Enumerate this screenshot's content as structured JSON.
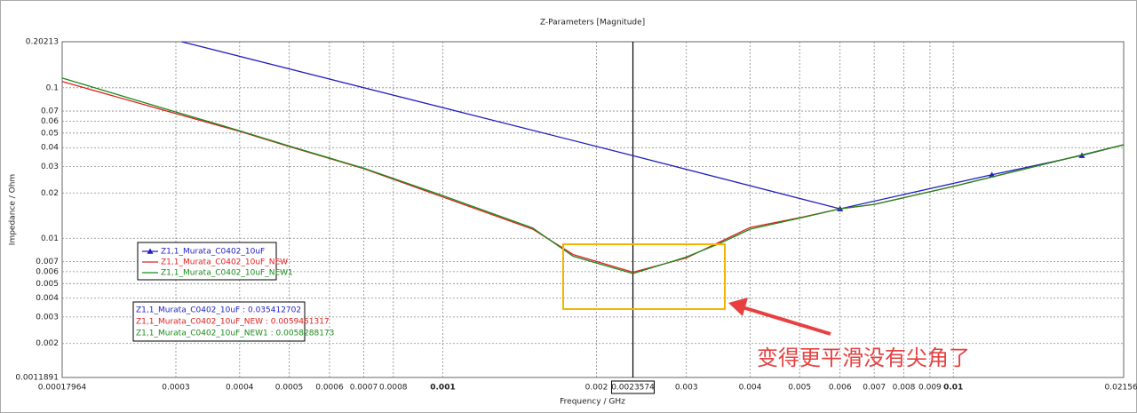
{
  "chart_data": {
    "type": "line",
    "title": "Z-Parameters [Magnitude]",
    "x_label": "Frequency / GHz",
    "y_label": "Impedance / Ohm",
    "log_x": true,
    "log_y": true,
    "grid": true,
    "xlim": [
      0.00017964,
      0.021565
    ],
    "ylim": [
      0.0011891,
      0.20213
    ],
    "xticks": [
      0.00017964,
      0.0003,
      0.0004,
      0.0005,
      0.0006,
      0.0007,
      0.0008,
      0.001,
      0.002,
      0.003,
      0.004,
      0.005,
      0.006,
      0.007,
      0.008,
      0.009,
      0.01,
      0.021565
    ],
    "yticks": [
      0.0011891,
      0.002,
      0.003,
      0.004,
      0.005,
      0.006,
      0.007,
      0.01,
      0.02,
      0.03,
      0.04,
      0.05,
      0.06,
      0.07,
      0.1,
      0.20213
    ],
    "cursor": 0.0023574,
    "series": [
      {
        "name": "Z1,1_Murata_C0402_10uF",
        "color": "#1f1fbf",
        "marker": "triangle",
        "x": [
          0.000308,
          0.0023574,
          0.006,
          0.0119,
          0.01786,
          0.021565
        ],
        "values": [
          0.20213,
          0.035412702,
          0.0157,
          0.0264,
          0.0355,
          0.0418
        ]
      },
      {
        "name": "Z1,1_Murata_C0402_10uF_NEW",
        "color": "#e02020",
        "x": [
          0.00017964,
          0.0003,
          0.0004,
          0.0005,
          0.0007,
          0.001,
          0.0015,
          0.0018,
          0.0023574,
          0.003,
          0.0035,
          0.004,
          0.005,
          0.006,
          0.007,
          0.01,
          0.021565
        ],
        "values": [
          0.11,
          0.0673,
          0.0513,
          0.0407,
          0.029,
          0.0188,
          0.0115,
          0.0078,
          0.0059461317,
          0.0074,
          0.0095,
          0.0118,
          0.0137,
          0.0157,
          0.0168,
          0.0221,
          0.0418
        ]
      },
      {
        "name": "Z1,1_Murata_C0402_10uF_NEW1",
        "color": "#1a8a1a",
        "x": [
          0.00017964,
          0.0003,
          0.0004,
          0.0005,
          0.0007,
          0.001,
          0.0015,
          0.0018,
          0.0023574,
          0.003,
          0.0035,
          0.004,
          0.005,
          0.006,
          0.007,
          0.01,
          0.021565
        ],
        "values": [
          0.116,
          0.069,
          0.0518,
          0.041,
          0.0292,
          0.0192,
          0.0117,
          0.0076,
          0.0058288173,
          0.0075,
          0.0093,
          0.0115,
          0.0136,
          0.0157,
          0.0168,
          0.0221,
          0.0418
        ]
      }
    ],
    "readouts": [
      "Z1,1_Murata_C0402_10uF : 0.035412702",
      "Z1,1_Murata_C0402_10uF_NEW : 0.0059461317",
      "Z1,1_Murata_C0402_10uF_NEW1 : 0.0058288173"
    ],
    "annotation": "变得更平滑没有尖角了"
  }
}
